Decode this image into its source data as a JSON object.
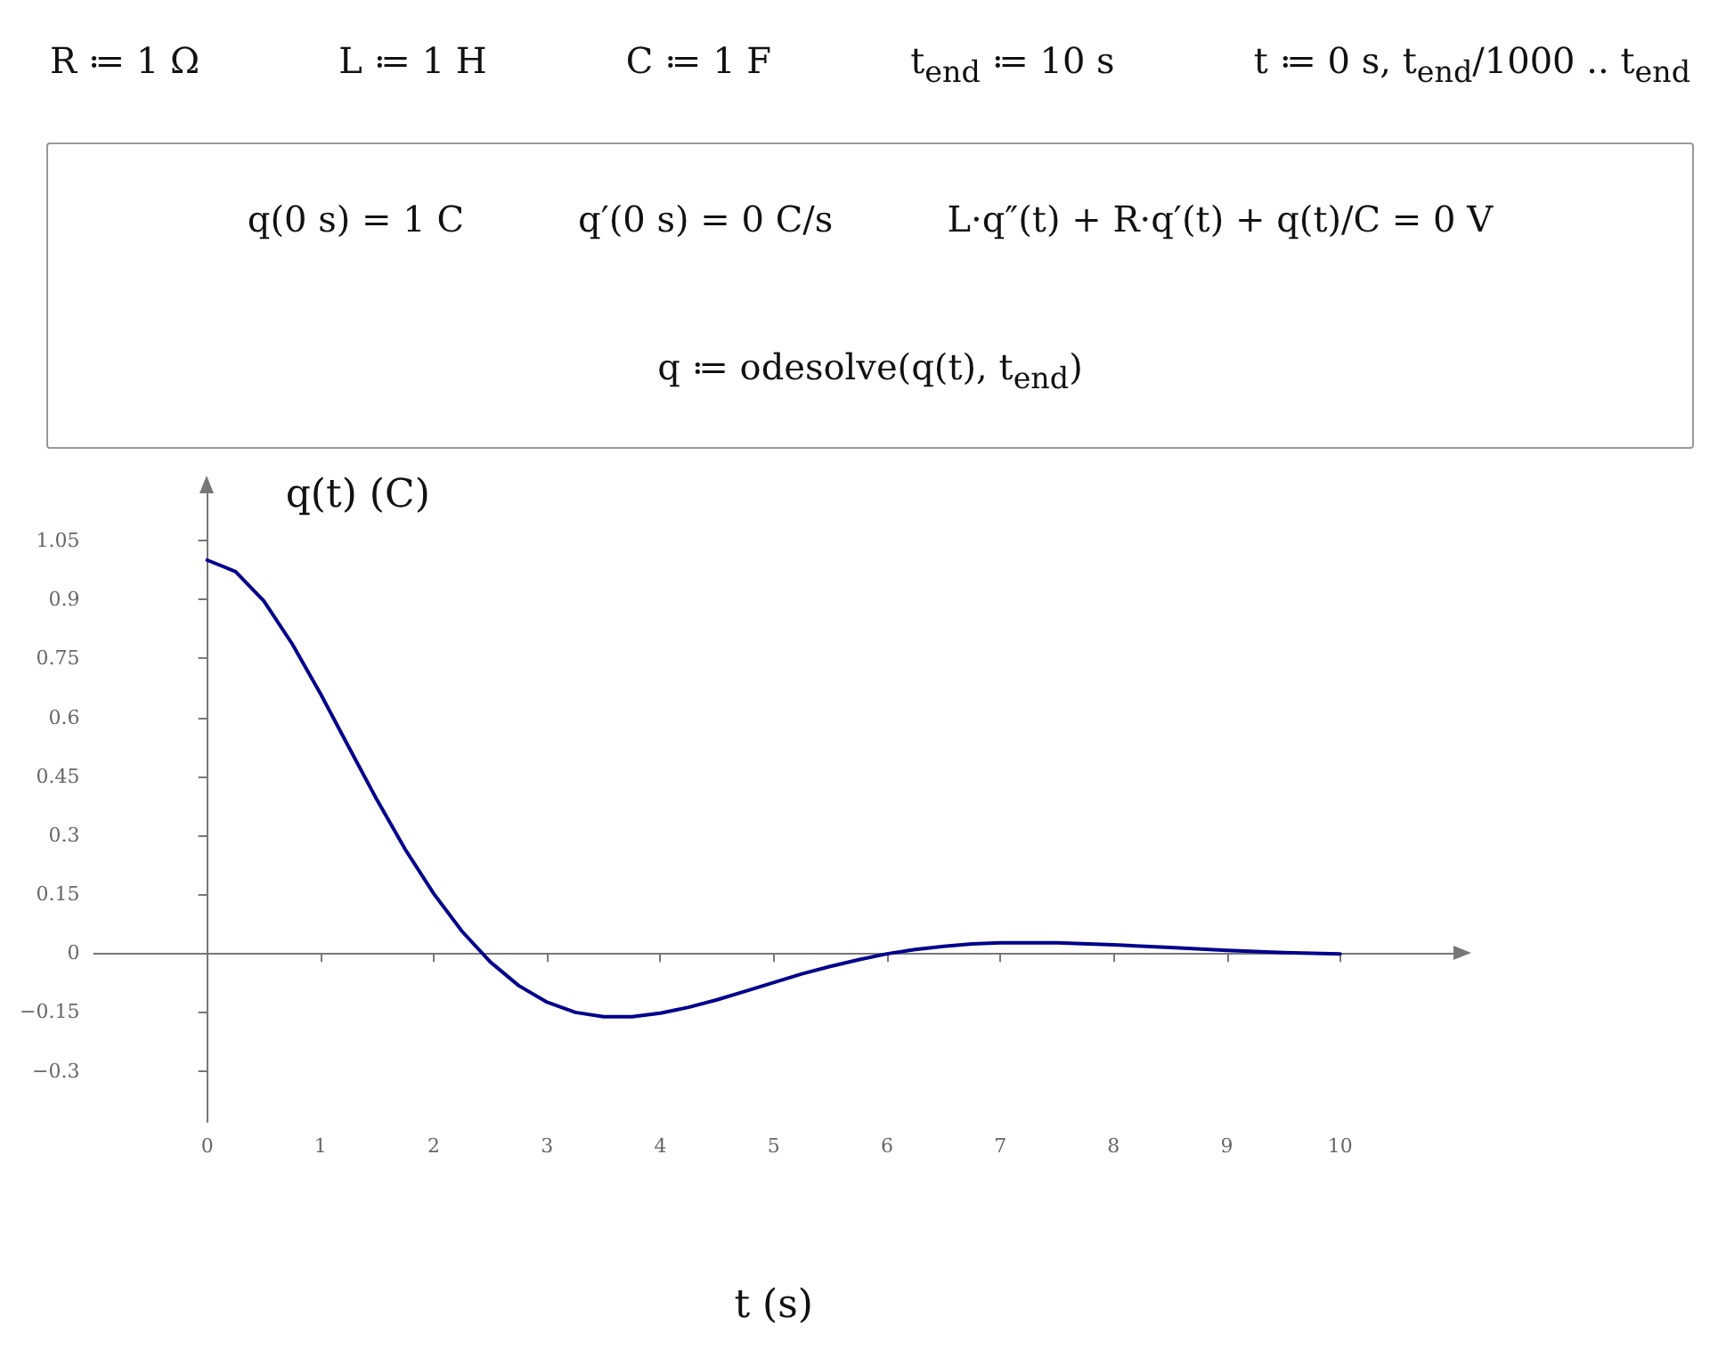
{
  "chart_data": {
    "type": "line",
    "xlabel": "t (s)",
    "ylabel": "q(t) (C)",
    "annotations": [
      "R ≔ 1 Ω",
      "L ≔ 1 H",
      "C ≔ 1 F",
      "t$_{end}$ ≔ 10 s",
      "t ≔ 0 s, t$_{end}$/1000 .. t$_{end}$",
      "q(0 s) = 1 C",
      "q′(0 s) = 0 C/s",
      "L·q″(t) + R·q′(t) + q(t)/C = 0 V",
      "q ≔ odesolve(q(t), t$_{end}$)"
    ],
    "x": [
      0,
      0.25,
      0.5,
      0.75,
      1,
      1.25,
      1.5,
      1.75,
      2,
      2.25,
      2.5,
      2.75,
      3,
      3.25,
      3.5,
      3.75,
      4,
      4.25,
      4.5,
      4.75,
      5,
      5.25,
      5.5,
      5.75,
      6,
      6.25,
      6.5,
      6.75,
      7,
      7.5,
      8,
      8.5,
      9,
      9.5,
      10
    ],
    "series": [
      {
        "color": "#00008b",
        "values": [
          1,
          0.971,
          0.896,
          0.787,
          0.66,
          0.524,
          0.389,
          0.263,
          0.151,
          0.055,
          -0.023,
          -0.083,
          -0.125,
          -0.151,
          -0.162,
          -0.162,
          -0.153,
          -0.138,
          -0.119,
          -0.097,
          -0.075,
          -0.053,
          -0.034,
          -0.017,
          -0.002,
          0.009,
          0.017,
          0.023,
          0.026,
          0.026,
          0.021,
          0.014,
          0.007,
          0.001,
          -0.002
        ]
      }
    ],
    "xlim": [
      -1,
      11
    ],
    "ylim": [
      -0.43,
      1.17
    ],
    "xticks": [
      0,
      1,
      2,
      3,
      4,
      5,
      6,
      7,
      8,
      9,
      10
    ],
    "yticks": [
      {
        "value": -0.3,
        "label": "−0.3"
      },
      {
        "value": -0.15,
        "label": "−0.15"
      },
      0,
      0.15,
      0.3,
      0.45,
      0.6,
      0.75,
      0.9,
      1.05
    ],
    "marker": "none",
    "line_style": "solid"
  }
}
